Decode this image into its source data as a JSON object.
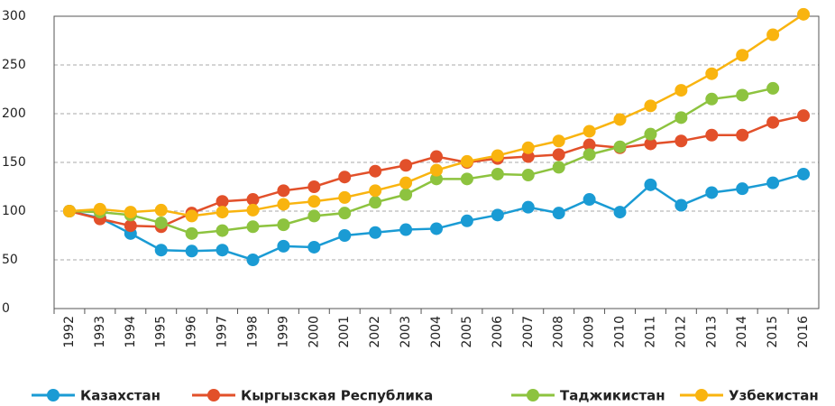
{
  "chart_data": {
    "type": "line",
    "categories": [
      "1992",
      "1993",
      "1994",
      "1995",
      "1996",
      "1997",
      "1998",
      "1999",
      "2000",
      "2001",
      "2002",
      "2003",
      "2004",
      "2005",
      "2006",
      "2007",
      "2008",
      "2009",
      "2010",
      "2011",
      "2012",
      "2013",
      "2014",
      "2015",
      "2016"
    ],
    "series": [
      {
        "name": "Казахстан",
        "color": "#1a9bd4",
        "values": [
          100,
          93,
          77,
          60,
          59,
          60,
          50,
          64,
          63,
          75,
          78,
          81,
          82,
          90,
          96,
          104,
          98,
          112,
          99,
          127,
          106,
          119,
          123,
          129,
          138
        ]
      },
      {
        "name": "Кыргызская Республика",
        "color": "#e2502a",
        "values": [
          100,
          92,
          85,
          84,
          98,
          110,
          112,
          121,
          125,
          135,
          141,
          147,
          156,
          150,
          154,
          156,
          158,
          168,
          165,
          169,
          172,
          178,
          178,
          191,
          198
        ]
      },
      {
        "name": "Таджикистан",
        "color": "#8dc33f",
        "values": [
          100,
          99,
          96,
          88,
          77,
          80,
          84,
          86,
          95,
          98,
          109,
          117,
          133,
          133,
          138,
          137,
          145,
          158,
          166,
          179,
          196,
          215,
          219,
          226,
          null
        ]
      },
      {
        "name": "Узбекистан",
        "color": "#f9b40f",
        "values": [
          100,
          102,
          99,
          101,
          95,
          99,
          101,
          107,
          110,
          114,
          121,
          129,
          142,
          151,
          157,
          165,
          172,
          182,
          194,
          208,
          224,
          241,
          260,
          281,
          302
        ]
      }
    ],
    "ylim": [
      0,
      300
    ],
    "yticks": [
      0,
      50,
      100,
      150,
      200,
      250,
      300
    ],
    "grid": true,
    "legend": "bottom"
  }
}
